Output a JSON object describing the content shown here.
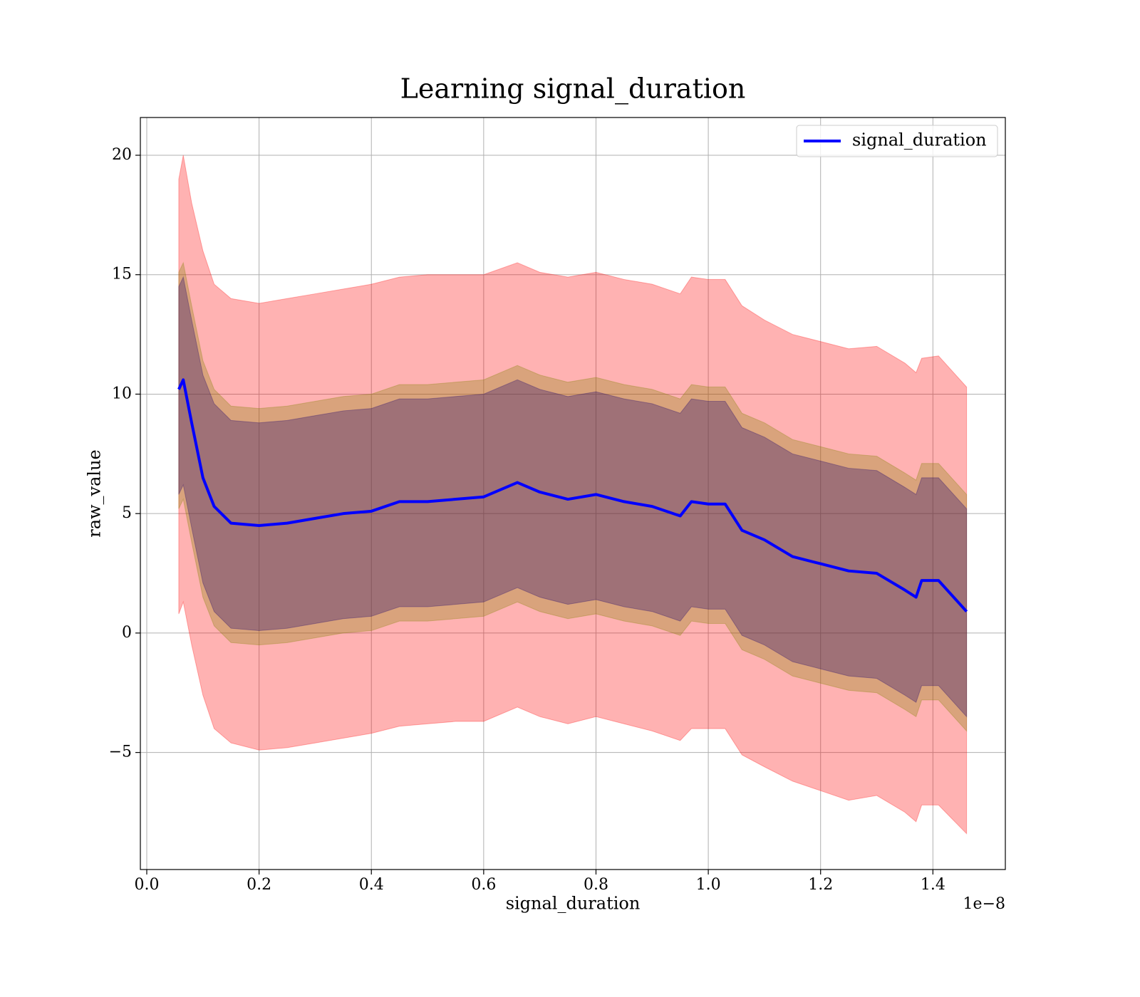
{
  "chart_data": {
    "type": "line",
    "title": "Learning signal_duration",
    "x_label": "signal_duration",
    "y_label": "raw_value",
    "x_offset_label": "1e−8",
    "x": [
      0.057,
      0.065,
      0.08,
      0.1,
      0.12,
      0.15,
      0.2,
      0.25,
      0.3,
      0.35,
      0.4,
      0.45,
      0.5,
      0.55,
      0.6,
      0.66,
      0.7,
      0.75,
      0.8,
      0.85,
      0.9,
      0.95,
      0.97,
      1.0,
      1.03,
      1.06,
      1.1,
      1.15,
      1.2,
      1.25,
      1.3,
      1.35,
      1.37,
      1.38,
      1.41,
      1.46
    ],
    "series": [
      {
        "name": "signal_duration",
        "color": "#0000ff",
        "values": [
          10.2,
          10.6,
          8.8,
          6.5,
          5.3,
          4.6,
          4.5,
          4.6,
          4.8,
          5.0,
          5.1,
          5.5,
          5.5,
          5.6,
          5.7,
          6.3,
          5.9,
          5.6,
          5.8,
          5.5,
          5.3,
          4.9,
          5.5,
          5.4,
          5.4,
          4.3,
          3.9,
          3.2,
          2.9,
          2.6,
          2.5,
          1.8,
          1.5,
          2.2,
          2.2,
          0.9
        ]
      }
    ],
    "bands": [
      {
        "color": "#ff0000",
        "alpha": 0.3,
        "lower": [
          0.8,
          1.3,
          -0.5,
          -2.6,
          -4,
          -4.6,
          -4.9,
          -4.8,
          -4.6,
          -4.4,
          -4.2,
          -3.9,
          -3.8,
          -3.7,
          -3.7,
          -3.1,
          -3.5,
          -3.8,
          -3.5,
          -3.8,
          -4.1,
          -4.5,
          -4,
          -4,
          -4,
          -5.1,
          -5.6,
          -6.2,
          -6.6,
          -7,
          -6.8,
          -7.5,
          -7.9,
          -7.2,
          -7.2,
          -8.4
        ],
        "upper": [
          19,
          20,
          18,
          16,
          14.6,
          14,
          13.8,
          14,
          14.2,
          14.4,
          14.6,
          14.9,
          15,
          15,
          15,
          15.5,
          15.1,
          14.9,
          15.1,
          14.8,
          14.6,
          14.2,
          14.9,
          14.8,
          14.8,
          13.7,
          13.1,
          12.5,
          12.2,
          11.9,
          12,
          11.3,
          10.9,
          11.5,
          11.6,
          10.3
        ]
      },
      {
        "color": "#808000",
        "alpha": 0.3,
        "lower": [
          5.2,
          5.6,
          3.8,
          1.5,
          0.3,
          -0.4,
          -0.5,
          -0.4,
          -0.2,
          0.0,
          0.1,
          0.5,
          0.5,
          0.6,
          0.7,
          1.3,
          0.9,
          0.6,
          0.8,
          0.5,
          0.3,
          -0.1,
          0.5,
          0.4,
          0.4,
          -0.7,
          -1.1,
          -1.8,
          -2.1,
          -2.4,
          -2.5,
          -3.2,
          -3.5,
          -2.8,
          -2.8,
          -4.1
        ],
        "upper": [
          15.1,
          15.5,
          13.7,
          11.4,
          10.2,
          9.5,
          9.4,
          9.5,
          9.7,
          9.9,
          10.0,
          10.4,
          10.4,
          10.5,
          10.6,
          11.2,
          10.8,
          10.5,
          10.7,
          10.4,
          10.2,
          9.8,
          10.4,
          10.3,
          10.3,
          9.2,
          8.8,
          8.1,
          7.8,
          7.5,
          7.4,
          6.7,
          6.4,
          7.1,
          7.1,
          5.8
        ]
      },
      {
        "color": "#1b006c",
        "alpha": 0.3,
        "lower": [
          5.8,
          6.2,
          4.4,
          2.1,
          0.9,
          0.2,
          0.1,
          0.2,
          0.4,
          0.6,
          0.7,
          1.1,
          1.1,
          1.2,
          1.3,
          1.9,
          1.5,
          1.2,
          1.4,
          1.1,
          0.9,
          0.5,
          1.1,
          1.0,
          1.0,
          -0.1,
          -0.5,
          -1.2,
          -1.5,
          -1.8,
          -1.9,
          -2.6,
          -2.9,
          -2.2,
          -2.2,
          -3.5
        ],
        "upper": [
          14.5,
          14.9,
          13.1,
          10.8,
          9.6,
          8.9,
          8.8,
          8.9,
          9.1,
          9.3,
          9.4,
          9.8,
          9.8,
          9.9,
          10.0,
          10.6,
          10.2,
          9.9,
          10.1,
          9.8,
          9.6,
          9.2,
          9.8,
          9.7,
          9.7,
          8.6,
          8.2,
          7.5,
          7.2,
          6.9,
          6.8,
          6.1,
          5.8,
          6.5,
          6.5,
          5.2
        ]
      }
    ],
    "xlim": [
      -0.0114,
      1.529
    ],
    "ylim": [
      -9.9,
      21.58
    ],
    "xticks": [
      {
        "value": 0,
        "label": "0.0"
      },
      0.2,
      0.4,
      0.6,
      0.8,
      {
        "value": 1,
        "label": "1.0"
      },
      1.2,
      1.4
    ],
    "yticks": [
      {
        "value": -5,
        "label": "−5"
      },
      0,
      5,
      10,
      15,
      20
    ],
    "grid": true,
    "legend": "upper right"
  }
}
